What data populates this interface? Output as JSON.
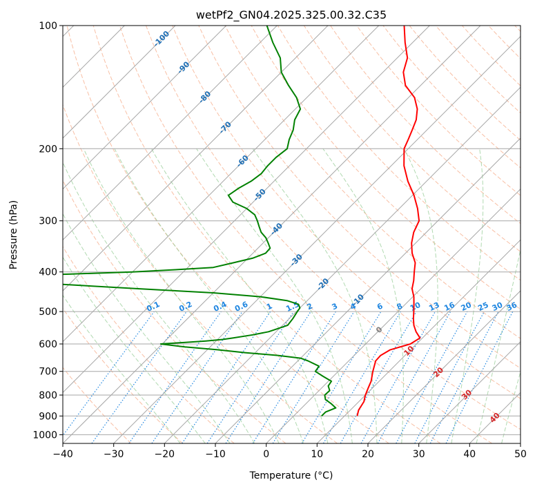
{
  "chart_data": {
    "type": "line",
    "title": "wetPf2_GN04.2025.325.00.32.C35",
    "xlabel": "Temperature (°C)",
    "ylabel": "Pressure (hPa)",
    "xlim": [
      -40,
      50
    ],
    "ylim": [
      1050,
      100
    ],
    "y_scale": "log",
    "grid": true,
    "x_ticks": [
      -40,
      -30,
      -20,
      -10,
      0,
      10,
      20,
      30,
      40,
      50
    ],
    "y_ticks": [
      100,
      200,
      300,
      400,
      500,
      600,
      700,
      800,
      900,
      1000
    ],
    "colors": {
      "temperature": "#ff0000",
      "dewpoint": "#008000",
      "isotherm": "#a6a6a6",
      "dry_adiabat": "#f5a47e",
      "moist_adiabat": "#8fc98f",
      "mixing_ratio": "#1f86e0",
      "isotherm_label": "#1f6fb5",
      "warm_isotherm_label": "#d62728",
      "zero_label": "#808080"
    },
    "isotherm_labels": [
      "-100",
      "-90",
      "-80",
      "-70",
      "-60",
      "-50",
      "-40",
      "-30",
      "-20",
      "-10",
      "0",
      "10",
      "20",
      "30",
      "40"
    ],
    "mixing_ratio_labels": [
      "0.1",
      "0.2",
      "0.4",
      "0.6",
      "1",
      "1.5",
      "2",
      "3",
      "4",
      "6",
      "8",
      "10",
      "13",
      "16",
      "20",
      "25",
      "30",
      "36"
    ],
    "series": [
      {
        "key": "temperature",
        "pressure": [
          900,
          870,
          830,
          800,
          770,
          740,
          700,
          660,
          640,
          620,
          600,
          580,
          560,
          540,
          520,
          500,
          480,
          460,
          440,
          420,
          400,
          380,
          360,
          340,
          320,
          300,
          280,
          260,
          240,
          220,
          200,
          190,
          180,
          170,
          160,
          150,
          140,
          130,
          120,
          110,
          100
        ],
        "temperature": [
          12.5,
          11.6,
          11.0,
          10.0,
          9.2,
          8.4,
          6.8,
          5.3,
          5.2,
          6.0,
          8.8,
          9.5,
          7.5,
          5.8,
          4.4,
          3.1,
          1.7,
          0.2,
          -1.7,
          -3.0,
          -4.6,
          -6.2,
          -8.7,
          -10.8,
          -12.5,
          -13.7,
          -16.4,
          -19.7,
          -23.7,
          -27.5,
          -30.8,
          -31.8,
          -32.9,
          -34.1,
          -36.0,
          -38.8,
          -43.0,
          -46.0,
          -48.0,
          -51.5,
          -55.0
        ]
      },
      {
        "key": "dewpoint",
        "pressure": [
          900,
          880,
          860,
          840,
          820,
          800,
          780,
          760,
          740,
          720,
          700,
          680,
          660,
          650,
          640,
          630,
          620,
          610,
          600,
          595,
          590,
          585,
          580,
          570,
          560,
          540,
          520,
          500,
          490,
          480,
          470,
          460,
          450,
          440,
          430,
          420,
          415,
          410,
          405,
          400,
          395,
          390,
          380,
          370,
          360,
          350,
          340,
          330,
          320,
          310,
          300,
          290,
          280,
          270,
          260,
          250,
          240,
          230,
          220,
          210,
          200,
          190,
          180,
          170,
          160,
          150,
          140,
          130,
          120,
          110,
          100
        ],
        "temperature": [
          5.5,
          5.5,
          6.7,
          5.0,
          3.0,
          2.0,
          2.1,
          0.9,
          0.6,
          -2.0,
          -4.5,
          -4.8,
          -8.0,
          -10.0,
          -15.0,
          -22.0,
          -28.0,
          -35.0,
          -40.3,
          -36.0,
          -32.0,
          -29.0,
          -27.2,
          -24.0,
          -21.5,
          -19.0,
          -19.3,
          -19.8,
          -20.0,
          -21.0,
          -24.0,
          -30.0,
          -40.0,
          -55.0,
          -70.0,
          -85.0,
          -90.0,
          -87.0,
          -72.0,
          -60.0,
          -52.0,
          -45.0,
          -42.0,
          -39.0,
          -37.5,
          -37.6,
          -39.0,
          -40.5,
          -42.5,
          -44.0,
          -45.5,
          -47.2,
          -50.0,
          -54.0,
          -56.2,
          -55.6,
          -54.5,
          -54.0,
          -54.3,
          -54.3,
          -53.8,
          -55.2,
          -56.3,
          -58.0,
          -59.0,
          -62.0,
          -66.0,
          -70.0,
          -73.0,
          -77.5,
          -82.0
        ]
      }
    ]
  }
}
